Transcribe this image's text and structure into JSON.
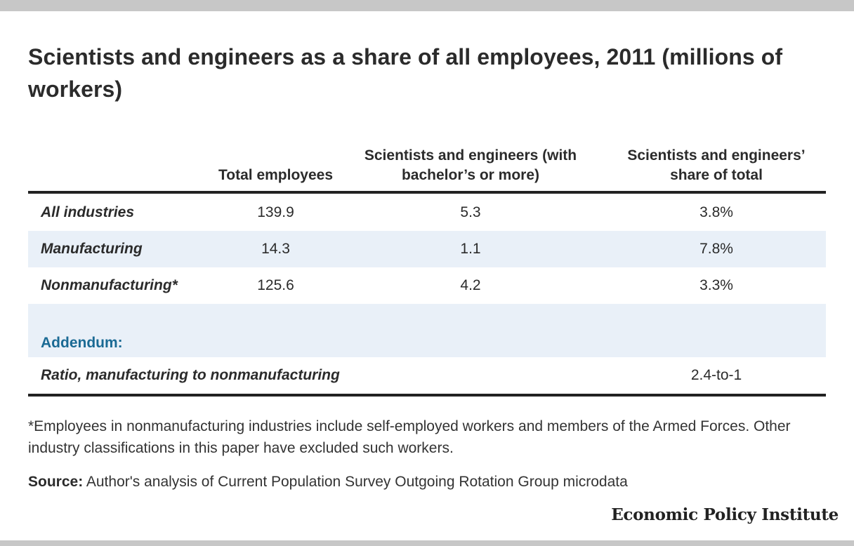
{
  "chart_data": {
    "type": "table",
    "title": "Scientists and engineers as a share of all employees, 2011 (millions of workers)",
    "columns": [
      "",
      "Total employees",
      "Scientists and engineers (with bachelor’s or more)",
      "Scientists and engineers’ share of total"
    ],
    "rows": [
      {
        "label": "All industries",
        "total": "139.9",
        "scientists": "5.3",
        "share": "3.8%"
      },
      {
        "label": "Manufacturing",
        "total": "14.3",
        "scientists": "1.1",
        "share": "7.8%"
      },
      {
        "label": "Nonmanufacturing*",
        "total": "125.6",
        "scientists": "4.2",
        "share": "3.3%"
      }
    ],
    "addendum": {
      "heading": "Addendum:",
      "label": "Ratio, manufacturing to nonmanufacturing",
      "value": "2.4-to-1"
    },
    "footnote": "*Employees in nonmanufacturing industries include self-employed workers and members of the Armed Forces. Other industry classifications in this paper have excluded such workers.",
    "source_label": "Source:",
    "source_text": " Author's analysis of Current Population Survey Outgoing Rotation Group microdata"
  },
  "branding": "Economic Policy Institute",
  "colors": {
    "row_shade": "#e9f0f8",
    "addendum_heading": "#1a6a94",
    "frame_bar": "#c7c7c7"
  }
}
